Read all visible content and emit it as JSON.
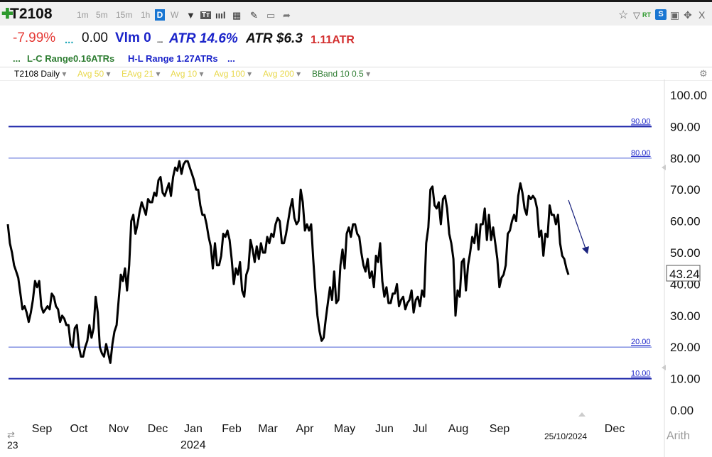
{
  "header": {
    "symbol": "T2108",
    "timeframes": [
      "1m",
      "5m",
      "15m",
      "1h"
    ],
    "active_timeframe": "D",
    "week_tf": "W",
    "icons": [
      "plus-icon",
      "dropdown-icon",
      "text-icon",
      "bars-icon",
      "grid-icon",
      "pencil-icon",
      "comment-icon",
      "share-icon",
      "star-icon",
      "filter-icon",
      "rt-icon",
      "s-icon",
      "save-icon",
      "move-icon",
      "close-icon"
    ],
    "rt_label": "RT",
    "s_label": "S",
    "close_label": "X"
  },
  "stats": {
    "pct_change": "-7.99%",
    "dots1": "...",
    "change": "0.00",
    "volume": "Vlm 0",
    "dots2": "...",
    "atr_pct": "ATR 14.6%",
    "atr_dollar": "ATR $6.3",
    "atr_count": "1.11ATR",
    "dots_left": "...",
    "lc_range": "L-C Range0.16ATRs",
    "hl_range": "H-L Range 1.27ATRs",
    "dots_right": "..."
  },
  "indicators": [
    {
      "label": "T2108 Daily",
      "color": "#222222"
    },
    {
      "label": "Avg 50",
      "color": "#f0e442"
    },
    {
      "label": "EAvg 21",
      "color": "#f0e442"
    },
    {
      "label": "Avg 10",
      "color": "#f0e442"
    },
    {
      "label": "Avg 100",
      "color": "#f0e442"
    },
    {
      "label": "Avg 200",
      "color": "#f0e442"
    },
    {
      "label": "BBand 10 0.5",
      "color": "#2e7d32"
    }
  ],
  "chart_data": {
    "type": "line",
    "ylim": [
      0,
      100
    ],
    "yticks": [
      "100.00",
      "90.00",
      "80.00",
      "70.00",
      "60.00",
      "50.00",
      "40.00",
      "30.00",
      "20.00",
      "10.00",
      "0.00"
    ],
    "xticks": [
      "Sep",
      "Oct",
      "Nov",
      "Dec",
      "Jan",
      "Feb",
      "Mar",
      "Apr",
      "May",
      "Jun",
      "Jul",
      "Aug",
      "Sep",
      "Dec"
    ],
    "x_year_labels": [
      "23",
      "2024"
    ],
    "current_date": "25/10/2024",
    "scale_label": "Arith",
    "last_value": "43.24",
    "hlines": [
      {
        "value": 90,
        "label": "90.00",
        "color": "#1a23a8",
        "width": 2
      },
      {
        "value": 80,
        "label": "80.00",
        "color": "#7a88e0",
        "width": 1.3
      },
      {
        "value": 20,
        "label": "20.00",
        "color": "#7a88e0",
        "width": 1.3
      },
      {
        "value": 10,
        "label": "10.00",
        "color": "#1a23a8",
        "width": 2
      }
    ],
    "series": [
      {
        "values": [
          59,
          53,
          50,
          46,
          44,
          42,
          37,
          32,
          33,
          31,
          28,
          31,
          35,
          41,
          39,
          41,
          33,
          31,
          32,
          33,
          32,
          37,
          36,
          33,
          32,
          28,
          30,
          29,
          27,
          27,
          21,
          20,
          26,
          27,
          20,
          17,
          17,
          20,
          22,
          27,
          23,
          26,
          36,
          31,
          20,
          18,
          17,
          21,
          18,
          15,
          21,
          25,
          27,
          35,
          43,
          41,
          45,
          38,
          46,
          60,
          62,
          56,
          59,
          63,
          66,
          64,
          62,
          67,
          66,
          66,
          69,
          68,
          73,
          74,
          69,
          68,
          70,
          72,
          68,
          74,
          77,
          76,
          79,
          75,
          78,
          79,
          79,
          77,
          75,
          73,
          70,
          70,
          65,
          62,
          62,
          59,
          55,
          52,
          45,
          53,
          46,
          46,
          49,
          56,
          55,
          57,
          54,
          48,
          40,
          45,
          43,
          47,
          38,
          36,
          43,
          45,
          54,
          51,
          47,
          52,
          48,
          53,
          50,
          50,
          55,
          53,
          56,
          55,
          59,
          61,
          60,
          53,
          53,
          56,
          60,
          64,
          67,
          61,
          59,
          60,
          70,
          66,
          57,
          59,
          57,
          59,
          48,
          38,
          30,
          25,
          22,
          23,
          29,
          34,
          39,
          35,
          44,
          34,
          35,
          46,
          51,
          45,
          56,
          58,
          55,
          59,
          59,
          56,
          55,
          50,
          46,
          44,
          48,
          42,
          44,
          39,
          49,
          47,
          53,
          41,
          36,
          39,
          34,
          34,
          37,
          37,
          40,
          33,
          35,
          36,
          32,
          34,
          35,
          38,
          31,
          35,
          36,
          33,
          38,
          36,
          53,
          58,
          70,
          71,
          65,
          64,
          66,
          59,
          67,
          68,
          64,
          56,
          53,
          48,
          30,
          38,
          36,
          47,
          48,
          38,
          46,
          50,
          55,
          53,
          59,
          51,
          59,
          59,
          64,
          54,
          62,
          54,
          58,
          53,
          48,
          39,
          42,
          43,
          46,
          56,
          57,
          60,
          62,
          60,
          68,
          72,
          69,
          64,
          62,
          68,
          67,
          68,
          67,
          64,
          55,
          57,
          49,
          56,
          55,
          65,
          62,
          62,
          59,
          62,
          53,
          49,
          48,
          45,
          43
        ]
      }
    ]
  }
}
